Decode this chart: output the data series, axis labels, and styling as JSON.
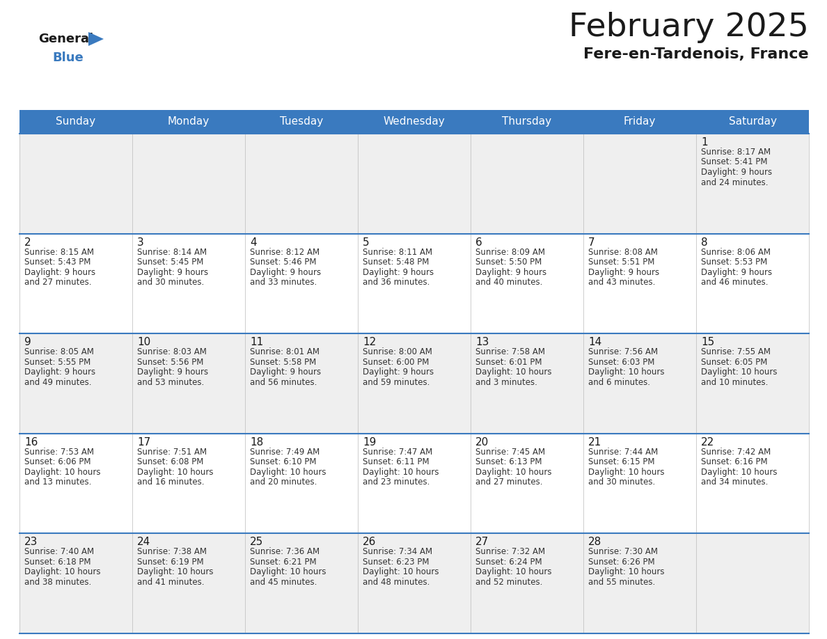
{
  "title": "February 2025",
  "subtitle": "Fere-en-Tardenois, France",
  "header_bg": "#3a7abf",
  "header_text_color": "#ffffff",
  "day_names": [
    "Sunday",
    "Monday",
    "Tuesday",
    "Wednesday",
    "Thursday",
    "Friday",
    "Saturday"
  ],
  "title_color": "#1a1a1a",
  "subtitle_color": "#1a1a1a",
  "cell_bg_odd": "#efefef",
  "cell_bg_even": "#ffffff",
  "day_number_color": "#1a1a1a",
  "info_text_color": "#333333",
  "border_color": "#3a7abf",
  "line_color": "#3a7abf",
  "calendar_data": [
    [
      null,
      null,
      null,
      null,
      null,
      null,
      {
        "day": 1,
        "sunrise": "8:17 AM",
        "sunset": "5:41 PM",
        "daylight": "9 hours",
        "daylight2": "and 24 minutes."
      }
    ],
    [
      {
        "day": 2,
        "sunrise": "8:15 AM",
        "sunset": "5:43 PM",
        "daylight": "9 hours",
        "daylight2": "and 27 minutes."
      },
      {
        "day": 3,
        "sunrise": "8:14 AM",
        "sunset": "5:45 PM",
        "daylight": "9 hours",
        "daylight2": "and 30 minutes."
      },
      {
        "day": 4,
        "sunrise": "8:12 AM",
        "sunset": "5:46 PM",
        "daylight": "9 hours",
        "daylight2": "and 33 minutes."
      },
      {
        "day": 5,
        "sunrise": "8:11 AM",
        "sunset": "5:48 PM",
        "daylight": "9 hours",
        "daylight2": "and 36 minutes."
      },
      {
        "day": 6,
        "sunrise": "8:09 AM",
        "sunset": "5:50 PM",
        "daylight": "9 hours",
        "daylight2": "and 40 minutes."
      },
      {
        "day": 7,
        "sunrise": "8:08 AM",
        "sunset": "5:51 PM",
        "daylight": "9 hours",
        "daylight2": "and 43 minutes."
      },
      {
        "day": 8,
        "sunrise": "8:06 AM",
        "sunset": "5:53 PM",
        "daylight": "9 hours",
        "daylight2": "and 46 minutes."
      }
    ],
    [
      {
        "day": 9,
        "sunrise": "8:05 AM",
        "sunset": "5:55 PM",
        "daylight": "9 hours",
        "daylight2": "and 49 minutes."
      },
      {
        "day": 10,
        "sunrise": "8:03 AM",
        "sunset": "5:56 PM",
        "daylight": "9 hours",
        "daylight2": "and 53 minutes."
      },
      {
        "day": 11,
        "sunrise": "8:01 AM",
        "sunset": "5:58 PM",
        "daylight": "9 hours",
        "daylight2": "and 56 minutes."
      },
      {
        "day": 12,
        "sunrise": "8:00 AM",
        "sunset": "6:00 PM",
        "daylight": "9 hours",
        "daylight2": "and 59 minutes."
      },
      {
        "day": 13,
        "sunrise": "7:58 AM",
        "sunset": "6:01 PM",
        "daylight": "10 hours",
        "daylight2": "and 3 minutes."
      },
      {
        "day": 14,
        "sunrise": "7:56 AM",
        "sunset": "6:03 PM",
        "daylight": "10 hours",
        "daylight2": "and 6 minutes."
      },
      {
        "day": 15,
        "sunrise": "7:55 AM",
        "sunset": "6:05 PM",
        "daylight": "10 hours",
        "daylight2": "and 10 minutes."
      }
    ],
    [
      {
        "day": 16,
        "sunrise": "7:53 AM",
        "sunset": "6:06 PM",
        "daylight": "10 hours",
        "daylight2": "and 13 minutes."
      },
      {
        "day": 17,
        "sunrise": "7:51 AM",
        "sunset": "6:08 PM",
        "daylight": "10 hours",
        "daylight2": "and 16 minutes."
      },
      {
        "day": 18,
        "sunrise": "7:49 AM",
        "sunset": "6:10 PM",
        "daylight": "10 hours",
        "daylight2": "and 20 minutes."
      },
      {
        "day": 19,
        "sunrise": "7:47 AM",
        "sunset": "6:11 PM",
        "daylight": "10 hours",
        "daylight2": "and 23 minutes."
      },
      {
        "day": 20,
        "sunrise": "7:45 AM",
        "sunset": "6:13 PM",
        "daylight": "10 hours",
        "daylight2": "and 27 minutes."
      },
      {
        "day": 21,
        "sunrise": "7:44 AM",
        "sunset": "6:15 PM",
        "daylight": "10 hours",
        "daylight2": "and 30 minutes."
      },
      {
        "day": 22,
        "sunrise": "7:42 AM",
        "sunset": "6:16 PM",
        "daylight": "10 hours",
        "daylight2": "and 34 minutes."
      }
    ],
    [
      {
        "day": 23,
        "sunrise": "7:40 AM",
        "sunset": "6:18 PM",
        "daylight": "10 hours",
        "daylight2": "and 38 minutes."
      },
      {
        "day": 24,
        "sunrise": "7:38 AM",
        "sunset": "6:19 PM",
        "daylight": "10 hours",
        "daylight2": "and 41 minutes."
      },
      {
        "day": 25,
        "sunrise": "7:36 AM",
        "sunset": "6:21 PM",
        "daylight": "10 hours",
        "daylight2": "and 45 minutes."
      },
      {
        "day": 26,
        "sunrise": "7:34 AM",
        "sunset": "6:23 PM",
        "daylight": "10 hours",
        "daylight2": "and 48 minutes."
      },
      {
        "day": 27,
        "sunrise": "7:32 AM",
        "sunset": "6:24 PM",
        "daylight": "10 hours",
        "daylight2": "and 52 minutes."
      },
      {
        "day": 28,
        "sunrise": "7:30 AM",
        "sunset": "6:26 PM",
        "daylight": "10 hours",
        "daylight2": "and 55 minutes."
      },
      null
    ]
  ],
  "logo_general_color": "#1a1a1a",
  "logo_blue_color": "#3a7abf",
  "figsize": [
    11.88,
    9.18
  ],
  "dpi": 100
}
